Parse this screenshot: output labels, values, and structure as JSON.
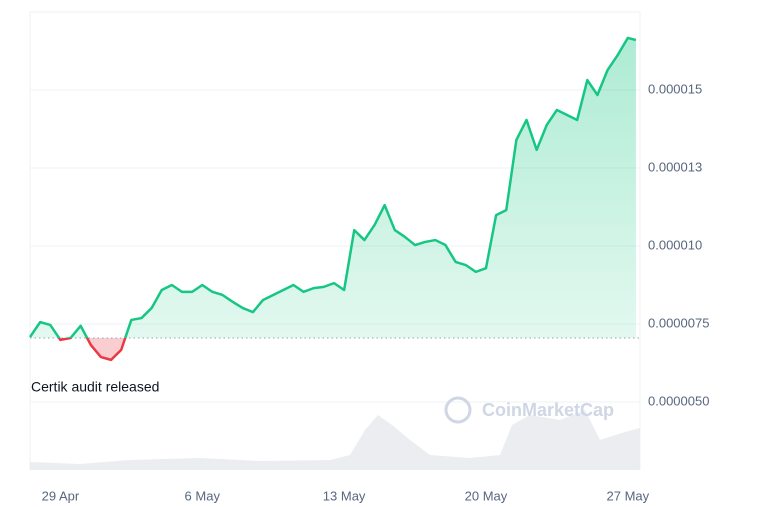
{
  "chart_data": {
    "type": "line",
    "x": [
      -1.5,
      -1,
      -0.5,
      0,
      0.5,
      1,
      1.5,
      2,
      2.5,
      3,
      3.5,
      4,
      4.5,
      5,
      5.5,
      6,
      6.5,
      7,
      7.5,
      8,
      8.5,
      9,
      9.5,
      10,
      10.5,
      11,
      11.5,
      12,
      12.5,
      13,
      13.5,
      14,
      14.5,
      15,
      15.5,
      16,
      16.5,
      17,
      17.5,
      18,
      18.5,
      19,
      19.5,
      20,
      20.5,
      21,
      21.5,
      22,
      22.5,
      23,
      23.5,
      24,
      24.5,
      25,
      25.5,
      26,
      26.5,
      27,
      27.5,
      28,
      28.4
    ],
    "values": [
      7.08e-06,
      7.56e-06,
      7.47e-06,
      6.99e-06,
      7.05e-06,
      7.44e-06,
      6.83e-06,
      6.44e-06,
      6.35e-06,
      6.67e-06,
      7.63e-06,
      7.69e-06,
      8.01e-06,
      8.59e-06,
      8.75e-06,
      8.53e-06,
      8.53e-06,
      8.75e-06,
      8.53e-06,
      8.43e-06,
      8.21e-06,
      8.01e-06,
      7.88e-06,
      8.27e-06,
      8.43e-06,
      8.59e-06,
      8.75e-06,
      8.53e-06,
      8.65e-06,
      8.69e-06,
      8.81e-06,
      8.59e-06,
      1.051e-05,
      1.019e-05,
      1.067e-05,
      1.131e-05,
      1.051e-05,
      1.029e-05,
      1.003e-05,
      1.013e-05,
      1.019e-05,
      1.003e-05,
      9.49e-06,
      9.39e-06,
      9.17e-06,
      9.29e-06,
      1.099e-05,
      1.115e-05,
      1.34e-05,
      1.404e-05,
      1.308e-05,
      1.388e-05,
      1.436e-05,
      1.42e-05,
      1.404e-05,
      1.532e-05,
      1.484e-05,
      1.564e-05,
      1.612e-05,
      1.667e-05,
      1.66e-05
    ],
    "baseline": 7.05e-06,
    "up_color": "#16c784",
    "down_color": "#ea3943",
    "xlim": [
      -1.5,
      28.6
    ],
    "xticks": [
      {
        "value": 0,
        "label": "29 Apr"
      },
      {
        "value": 7,
        "label": "6 May"
      },
      {
        "value": 14,
        "label": "13 May"
      },
      {
        "value": 21,
        "label": "20 May"
      },
      {
        "value": 28,
        "label": "27 May"
      }
    ],
    "ylim": [
      2.82e-06,
      1.75e-05
    ],
    "yticks": [
      {
        "value": 5e-06,
        "label": "0.0000050"
      },
      {
        "value": 7.5e-06,
        "label": "0.0000075"
      },
      {
        "value": 1e-05,
        "label": "0.000010"
      },
      {
        "value": 1.25e-05,
        "label": "0.000013"
      },
      {
        "value": 1.5e-05,
        "label": "0.000015"
      }
    ],
    "grid": true,
    "annotation": "Certik audit released",
    "watermark": "CoinMarketCap"
  }
}
